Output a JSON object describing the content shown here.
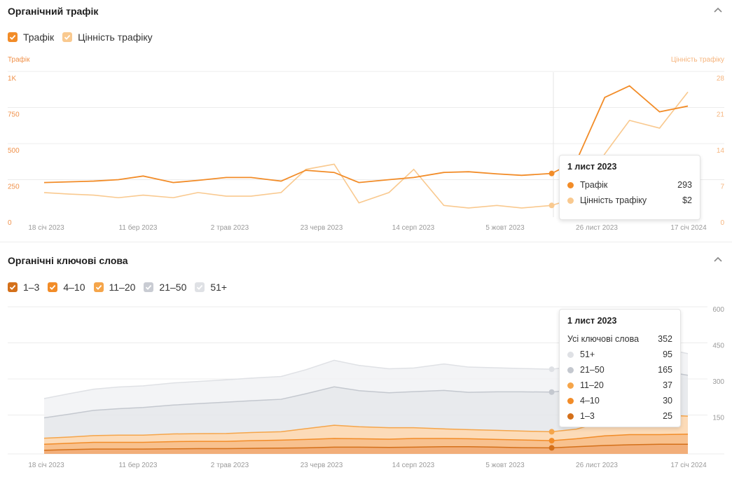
{
  "organic_traffic": {
    "title": "Органічний трафік",
    "legend": [
      {
        "label": "Трафік",
        "color": "#f28c28",
        "checked": true
      },
      {
        "label": "Цінність трафіку",
        "color": "#f9c98f",
        "checked": true
      }
    ],
    "left_axis_title": "Трафік",
    "right_axis_title": "Цінність трафіку",
    "tooltip": {
      "date": "1 лист 2023",
      "rows": [
        {
          "label": "Трафік",
          "value": "293",
          "color": "#f28c28"
        },
        {
          "label": "Цінність трафіку",
          "value": "$2",
          "color": "#f9c98f"
        }
      ]
    }
  },
  "organic_keywords": {
    "title": "Органічні ключові слова",
    "legend": [
      {
        "label": "1–3",
        "color": "#d4701a",
        "checked": true
      },
      {
        "label": "4–10",
        "color": "#f28c28",
        "checked": true
      },
      {
        "label": "11–20",
        "color": "#f5a54a",
        "checked": true
      },
      {
        "label": "21–50",
        "color": "#c9ccd3",
        "checked": true
      },
      {
        "label": "51+",
        "color": "#dfe1e5",
        "checked": true
      }
    ],
    "tooltip": {
      "date": "1 лист 2023",
      "total_label": "Усі ключові слова",
      "total_value": "352",
      "rows": [
        {
          "label": "51+",
          "value": "95",
          "color": "#dfe1e5"
        },
        {
          "label": "21–50",
          "value": "165",
          "color": "#c4c8cf"
        },
        {
          "label": "11–20",
          "value": "37",
          "color": "#f5a54a"
        },
        {
          "label": "4–10",
          "value": "30",
          "color": "#f28c28"
        },
        {
          "label": "1–3",
          "value": "25",
          "color": "#d4701a"
        }
      ]
    }
  },
  "chart_data": [
    {
      "type": "line",
      "x_tick_labels": [
        "18 січ 2023",
        "11 бер 2023",
        "2 трав 2023",
        "23 черв 2023",
        "14 серп 2023",
        "5 жовт 2023",
        "26 лист 2023",
        "17 січ 2024"
      ],
      "y_left_ticks": [
        "0",
        "250",
        "500",
        "750",
        "1K"
      ],
      "y_right_ticks": [
        "0",
        "7",
        "14",
        "21",
        "28"
      ],
      "ylim_left": [
        0,
        1000
      ],
      "ylim_right": [
        0,
        28
      ],
      "x": [
        "2023-01-18",
        "2023-02-01",
        "2023-02-15",
        "2023-03-01",
        "2023-03-15",
        "2023-04-01",
        "2023-04-15",
        "2023-05-01",
        "2023-05-15",
        "2023-06-01",
        "2023-06-15",
        "2023-07-01",
        "2023-07-15",
        "2023-08-01",
        "2023-08-15",
        "2023-09-01",
        "2023-09-15",
        "2023-10-01",
        "2023-10-15",
        "2023-11-01",
        "2023-11-15",
        "2023-12-01",
        "2023-12-15",
        "2024-01-01",
        "2024-01-17"
      ],
      "series": [
        {
          "name": "Трафік",
          "axis": "left",
          "values": [
            230,
            235,
            240,
            250,
            275,
            230,
            245,
            265,
            265,
            240,
            315,
            300,
            230,
            250,
            265,
            300,
            305,
            290,
            280,
            293,
            380,
            820,
            900,
            720,
            760
          ]
        },
        {
          "name": "Цінність трафіку",
          "axis": "right",
          "values": [
            4.5,
            4.2,
            4.0,
            3.5,
            4.0,
            3.5,
            4.5,
            3.8,
            3.8,
            4.5,
            9.0,
            10.0,
            2.5,
            4.5,
            9.0,
            2.0,
            1.5,
            2.0,
            1.5,
            2.0,
            3.5,
            12.0,
            18.5,
            17.0,
            24.0
          ]
        }
      ]
    },
    {
      "type": "area",
      "stacked": true,
      "x_tick_labels": [
        "18 січ 2023",
        "11 бер 2023",
        "2 трав 2023",
        "23 черв 2023",
        "14 серп 2023",
        "5 жовт 2023",
        "26 лист 2023",
        "17 січ 2024"
      ],
      "y_right_ticks": [
        "150",
        "300",
        "450",
        "600"
      ],
      "ylim": [
        0,
        600
      ],
      "x": [
        "2023-01-18",
        "2023-02-01",
        "2023-02-15",
        "2023-03-01",
        "2023-03-15",
        "2023-04-01",
        "2023-04-15",
        "2023-05-01",
        "2023-05-15",
        "2023-06-01",
        "2023-06-15",
        "2023-07-01",
        "2023-07-15",
        "2023-08-01",
        "2023-08-15",
        "2023-09-01",
        "2023-09-15",
        "2023-10-01",
        "2023-10-15",
        "2023-11-01",
        "2023-11-15",
        "2023-12-01",
        "2023-12-15",
        "2024-01-01",
        "2024-01-17"
      ],
      "series": [
        {
          "name": "1–3",
          "values": [
            15,
            18,
            20,
            20,
            20,
            21,
            22,
            22,
            23,
            24,
            25,
            28,
            28,
            27,
            28,
            30,
            30,
            28,
            26,
            25,
            30,
            35,
            38,
            40,
            40
          ]
        },
        {
          "name": "4–10",
          "values": [
            25,
            26,
            28,
            28,
            28,
            30,
            30,
            30,
            32,
            33,
            35,
            36,
            35,
            34,
            36,
            34,
            33,
            32,
            32,
            30,
            33,
            40,
            42,
            40,
            42
          ]
        },
        {
          "name": "11–20",
          "values": [
            25,
            26,
            28,
            30,
            30,
            32,
            32,
            33,
            34,
            35,
            45,
            55,
            50,
            48,
            45,
            40,
            38,
            38,
            37,
            37,
            40,
            60,
            80,
            82,
            75
          ]
        },
        {
          "name": "21–50",
          "values": [
            85,
            95,
            105,
            110,
            115,
            120,
            125,
            130,
            132,
            135,
            145,
            160,
            150,
            145,
            150,
            160,
            155,
            160,
            163,
            165,
            165,
            175,
            180,
            185,
            170
          ]
        },
        {
          "name": "51+",
          "values": [
            80,
            85,
            88,
            90,
            90,
            92,
            92,
            93,
            94,
            95,
            100,
            110,
            105,
            100,
            98,
            110,
            105,
            100,
            97,
            95,
            96,
            100,
            98,
            95,
            90
          ]
        }
      ]
    }
  ]
}
